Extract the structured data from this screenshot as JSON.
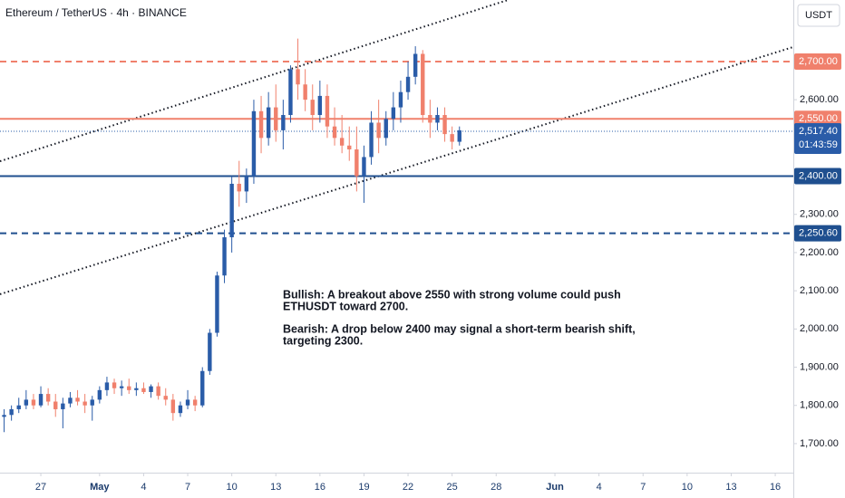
{
  "chart_data": {
    "type": "candlestick",
    "title": "Ethereum / TetherUS · 4h · BINANCE",
    "currency": "USDT",
    "countdown": "01:43:59",
    "up_color": "#2a5ca8",
    "down_color": "#f0806c",
    "x": [
      -2.5,
      -2,
      -1.5,
      -1,
      -0.5,
      0,
      0.5,
      1,
      1.5,
      2,
      2.5,
      3,
      3.5,
      4,
      4.5,
      5,
      5.5,
      6,
      6.5,
      7,
      7.5,
      8,
      8.5,
      9,
      9.5,
      10,
      10.5,
      11,
      11.5,
      12,
      12.5,
      13,
      13.5,
      14,
      14.5,
      15,
      15.5,
      16,
      16.5,
      17,
      17.5,
      18,
      18.5,
      19,
      19.5,
      20,
      20.5,
      21,
      21.5,
      22,
      22.5,
      23,
      23.5,
      24,
      24.5,
      25,
      25.5,
      26,
      26.5,
      27,
      27.5,
      28,
      28.5
    ],
    "open": [
      1770,
      1775,
      1790,
      1800,
      1815,
      1800,
      1830,
      1810,
      1790,
      1805,
      1820,
      1810,
      1800,
      1815,
      1840,
      1860,
      1845,
      1850,
      1840,
      1845,
      1835,
      1850,
      1825,
      1815,
      1780,
      1800,
      1815,
      1800,
      1890,
      1990,
      2140,
      2240,
      2380,
      2360,
      2400,
      2570,
      2500,
      2580,
      2520,
      2560,
      2680,
      2640,
      2600,
      2560,
      2610,
      2530,
      2500,
      2480,
      2470,
      2400,
      2450,
      2540,
      2500,
      2550,
      2580,
      2620,
      2660,
      2720,
      2560,
      2540,
      2560,
      2510,
      2490
    ],
    "high": [
      1790,
      1800,
      1820,
      1840,
      1830,
      1850,
      1845,
      1830,
      1820,
      1835,
      1840,
      1830,
      1825,
      1850,
      1875,
      1870,
      1865,
      1870,
      1860,
      1860,
      1855,
      1860,
      1845,
      1830,
      1810,
      1840,
      1825,
      1900,
      2000,
      2150,
      2260,
      2400,
      2440,
      2420,
      2600,
      2610,
      2620,
      2640,
      2600,
      2690,
      2760,
      2680,
      2640,
      2650,
      2640,
      2580,
      2560,
      2530,
      2530,
      2480,
      2570,
      2600,
      2570,
      2620,
      2650,
      2700,
      2740,
      2730,
      2600,
      2580,
      2580,
      2530,
      2530
    ],
    "low": [
      1730,
      1760,
      1780,
      1790,
      1790,
      1795,
      1800,
      1770,
      1740,
      1795,
      1800,
      1780,
      1760,
      1805,
      1825,
      1830,
      1825,
      1830,
      1825,
      1830,
      1820,
      1815,
      1800,
      1760,
      1770,
      1790,
      1785,
      1795,
      1880,
      1980,
      2120,
      2200,
      2320,
      2330,
      2380,
      2460,
      2480,
      2490,
      2470,
      2540,
      2600,
      2570,
      2520,
      2540,
      2500,
      2480,
      2460,
      2440,
      2360,
      2330,
      2430,
      2460,
      2480,
      2520,
      2540,
      2600,
      2640,
      2540,
      2500,
      2520,
      2490,
      2470,
      2480
    ],
    "close": [
      1775,
      1790,
      1800,
      1815,
      1800,
      1830,
      1810,
      1790,
      1805,
      1820,
      1810,
      1800,
      1815,
      1840,
      1860,
      1845,
      1850,
      1840,
      1845,
      1835,
      1850,
      1825,
      1815,
      1780,
      1800,
      1815,
      1800,
      1890,
      1990,
      2140,
      2240,
      2380,
      2360,
      2400,
      2570,
      2500,
      2580,
      2520,
      2560,
      2680,
      2640,
      2600,
      2560,
      2610,
      2530,
      2500,
      2480,
      2470,
      2400,
      2450,
      2540,
      2500,
      2550,
      2580,
      2620,
      2660,
      2720,
      2560,
      2540,
      2560,
      2510,
      2490,
      2520
    ],
    "xlim": [
      -2.78,
      51.23
    ],
    "xticks": [
      {
        "value": 0,
        "label": "27"
      },
      {
        "value": 4,
        "label": "May"
      },
      {
        "value": 7,
        "label": "4"
      },
      {
        "value": 10,
        "label": "7"
      },
      {
        "value": 13,
        "label": "10"
      },
      {
        "value": 16,
        "label": "13"
      },
      {
        "value": 19,
        "label": "16"
      },
      {
        "value": 22,
        "label": "19"
      },
      {
        "value": 25,
        "label": "22"
      },
      {
        "value": 28,
        "label": "25"
      },
      {
        "value": 31,
        "label": "28"
      },
      {
        "value": 35,
        "label": "Jun"
      },
      {
        "value": 38,
        "label": "4"
      },
      {
        "value": 41,
        "label": "7"
      },
      {
        "value": 44,
        "label": "10"
      },
      {
        "value": 47,
        "label": "13"
      },
      {
        "value": 50,
        "label": "16"
      }
    ],
    "ylim": [
      1624,
      2861
    ],
    "yticks": [
      {
        "value": 2600,
        "label": "2,600.00"
      },
      {
        "value": 2300,
        "label": "2,300.00"
      },
      {
        "value": 2200,
        "label": "2,200.00"
      },
      {
        "value": 2100,
        "label": "2,100.00"
      },
      {
        "value": 2000,
        "label": "2,000.00"
      },
      {
        "value": 1900,
        "label": "1,900.00"
      },
      {
        "value": 1800,
        "label": "1,800.00"
      },
      {
        "value": 1700,
        "label": "1,700.00"
      }
    ],
    "levels": [
      {
        "value": 2700,
        "label": "2,700.00",
        "color": "#f0806c",
        "style": "dashed"
      },
      {
        "value": 2550,
        "label": "2,550.00",
        "color": "#f0806c",
        "style": "solid"
      },
      {
        "value": 2517.4,
        "label": "2,517.40",
        "color": "#2a5ca8",
        "style": "dotted"
      },
      {
        "value": 2400,
        "label": "2,400.00",
        "color": "#1f4f8f",
        "style": "solid"
      },
      {
        "value": 2250.6,
        "label": "2,250.60",
        "color": "#1f4f8f",
        "style": "dashed"
      }
    ],
    "trend_lines": [
      {
        "x": [
          -2.78,
          31.8
        ],
        "y": [
          2439,
          2861
        ]
      },
      {
        "x": [
          -2.78,
          51.23
        ],
        "y": [
          2091,
          2738
        ]
      }
    ],
    "annotation": [
      "Bullish: A breakout above 2550 with strong volume could push",
      "ETHUSDT toward 2700.",
      "Bearish: A drop below 2400 may signal a short-term bearish shift,",
      "targeting 2300."
    ]
  }
}
